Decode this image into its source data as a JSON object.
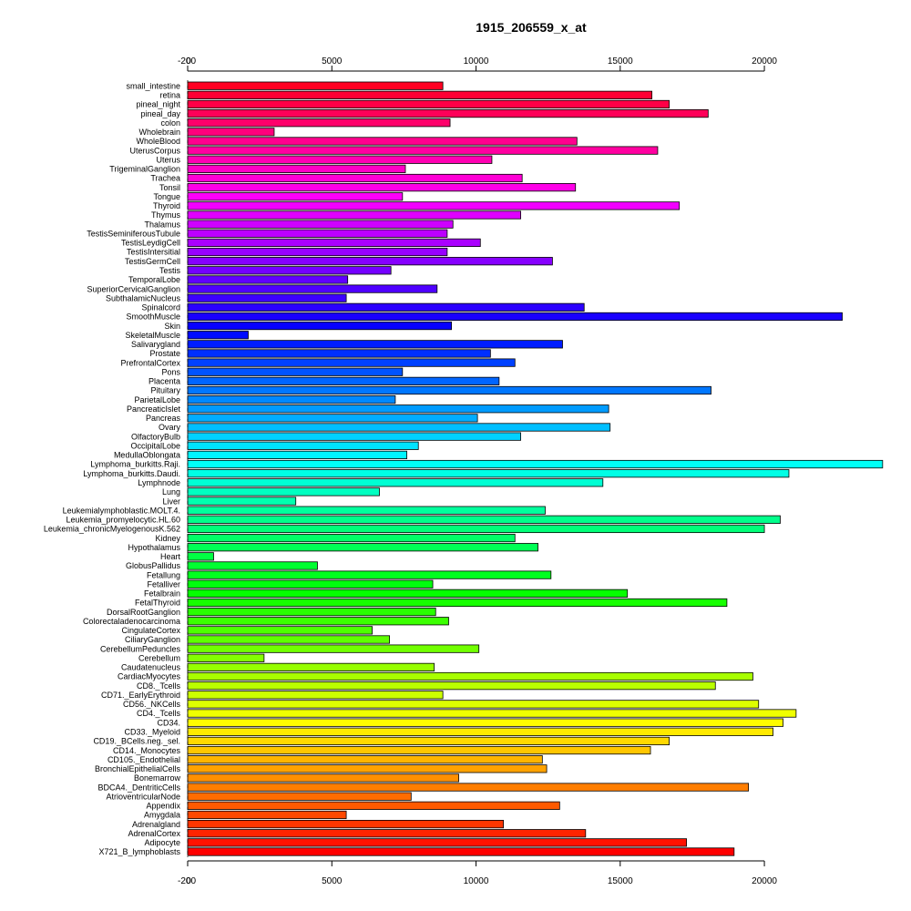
{
  "chart_data": {
    "type": "bar",
    "orientation": "horizontal",
    "title": "1915_206559_x_at",
    "xlabel": "",
    "ylabel": "",
    "xlim": [
      -200,
      24200
    ],
    "top_axis_ticks": [
      "-200",
      "0",
      "5000",
      "10000",
      "15000",
      "20000"
    ],
    "bottom_axis_ticks": [
      "-200",
      "0",
      "5000",
      "10000",
      "15000",
      "20000"
    ],
    "grid": false,
    "legend": "none",
    "color_scheme": "rainbow (red at top through blue, cyan, green, yellow to red at bottom)",
    "categories": [
      "small_intestine",
      "retina",
      "pineal_night",
      "pineal_day",
      "colon",
      "Wholebrain",
      "WholeBlood",
      "UterusCorpus",
      "Uterus",
      "TrigeminalGanglion",
      "Trachea",
      "Tonsil",
      "Tongue",
      "Thyroid",
      "Thymus",
      "Thalamus",
      "TestisSeminiferousTubule",
      "TestisLeydigCell",
      "TestisIntersitial",
      "TestisGermCell",
      "Testis",
      "TemporalLobe",
      "SuperiorCervicalGanglion",
      "SubthalamicNucleus",
      "Spinalcord",
      "SmoothMuscle",
      "Skin",
      "SkeletalMuscle",
      "Salivarygland",
      "Prostate",
      "PrefrontalCortex",
      "Pons",
      "Placenta",
      "Pituitary",
      "ParietalLobe",
      "PancreaticIslet",
      "Pancreas",
      "Ovary",
      "OlfactoryBulb",
      "OccipitalLobe",
      "MedullaOblongata",
      "Lymphoma_burkitts.Raji.",
      "Lymphoma_burkitts.Daudi.",
      "Lymphnode",
      "Lung",
      "Liver",
      "Leukemialymphoblastic.MOLT.4.",
      "Leukemia_promyelocytic.HL.60",
      "Leukemia_chronicMyelogenousK.562",
      "Kidney",
      "Hypothalamus",
      "Heart",
      "GlobusPallidus",
      "Fetallung",
      "Fetalliver",
      "Fetalbrain",
      "FetalThyroid",
      "DorsalRootGanglion",
      "Colorectaladenocarcinoma",
      "CingulateCortex",
      "CiliaryGanglion",
      "CerebellumPeduncles",
      "Cerebellum",
      "Caudatenucleus",
      "CardiacMyocytes",
      "CD8._Tcells",
      "CD71._EarlyErythroid",
      "CD56._NKCells",
      "CD4._Tcells",
      "CD34.",
      "CD33._Myeloid",
      "CD19._BCells.neg._sel.",
      "CD14._Monocytes",
      "CD105._Endothelial",
      "BronchialEpithelialCells",
      "Bonemarrow",
      "BDCA4._DentriticCells",
      "AtrioventricularNode",
      "Appendix",
      "Amygdala",
      "Adrenalgland",
      "AdrenalCortex",
      "Adipocyte",
      "X721_B_lymphoblasts"
    ],
    "values": [
      8850,
      16100,
      16700,
      18050,
      9100,
      3000,
      13500,
      16300,
      10550,
      7550,
      11600,
      13450,
      7450,
      17050,
      11550,
      9200,
      9000,
      10150,
      9000,
      12650,
      7050,
      5550,
      8650,
      5500,
      13750,
      22700,
      9150,
      2100,
      13000,
      10500,
      11350,
      7450,
      10800,
      18150,
      7200,
      14600,
      10050,
      14650,
      11550,
      8000,
      7600,
      24100,
      20850,
      14400,
      6650,
      3750,
      12400,
      20550,
      20000,
      11350,
      12150,
      900,
      4500,
      12600,
      8500,
      15250,
      18700,
      8600,
      9050,
      6400,
      7000,
      10100,
      2650,
      8550,
      19600,
      18300,
      8850,
      19800,
      21100,
      20650,
      20300,
      16700,
      16050,
      12300,
      12450,
      9400,
      19450,
      7750,
      12900,
      5500,
      10950,
      13800,
      17300,
      18950
    ]
  }
}
